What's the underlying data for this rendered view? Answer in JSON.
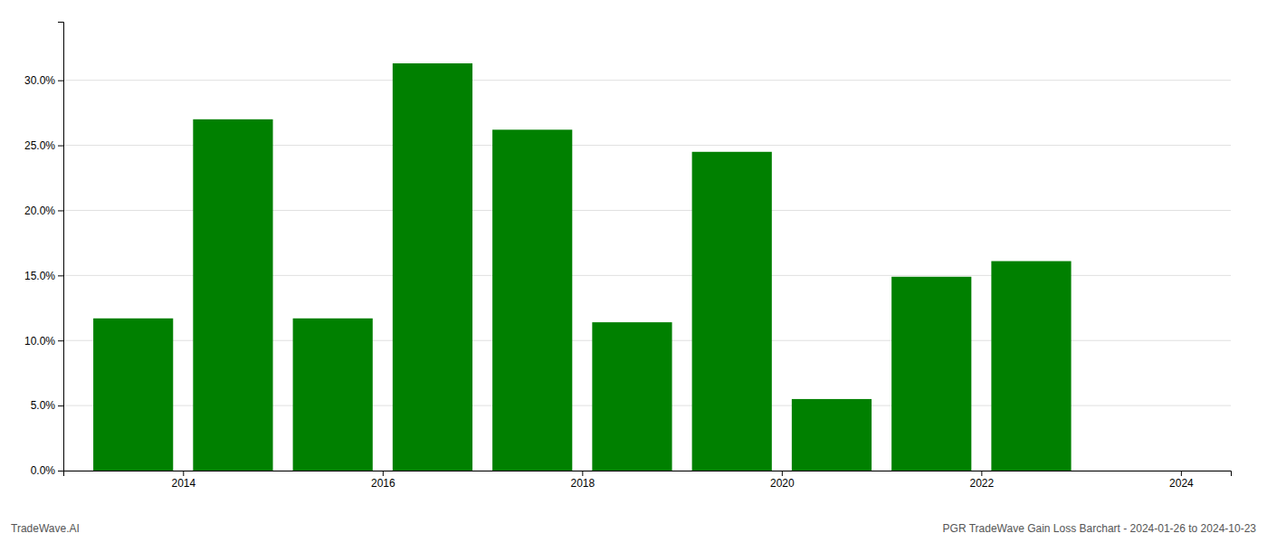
{
  "chart_data": {
    "type": "bar",
    "x": [
      2013.5,
      2014.5,
      2015.5,
      2016.5,
      2017.5,
      2018.5,
      2019.5,
      2020.5,
      2021.5,
      2022.5
    ],
    "values": [
      0.117,
      0.27,
      0.117,
      0.313,
      0.262,
      0.114,
      0.245,
      0.055,
      0.149,
      0.161
    ],
    "color": "#008000",
    "xlim": [
      2012.8,
      2024.5
    ],
    "xticks": [
      2014,
      2016,
      2018,
      2020,
      2022,
      2024
    ],
    "ylim": [
      0,
      0.345
    ],
    "yticks": [
      {
        "value": 0.0,
        "label": "0.0%"
      },
      {
        "value": 0.05,
        "label": "5.0%"
      },
      {
        "value": 0.1,
        "label": "10.0%"
      },
      {
        "value": 0.15,
        "label": "15.0%"
      },
      {
        "value": 0.2,
        "label": "20.0%"
      },
      {
        "value": 0.25,
        "label": "25.0%"
      },
      {
        "value": 0.3,
        "label": "30.0%"
      }
    ],
    "grid": true,
    "annotations": [
      "TradeWave.AI",
      "PGR TradeWave Gain Loss Barchart - 2024-01-26 to 2024-10-23"
    ]
  }
}
